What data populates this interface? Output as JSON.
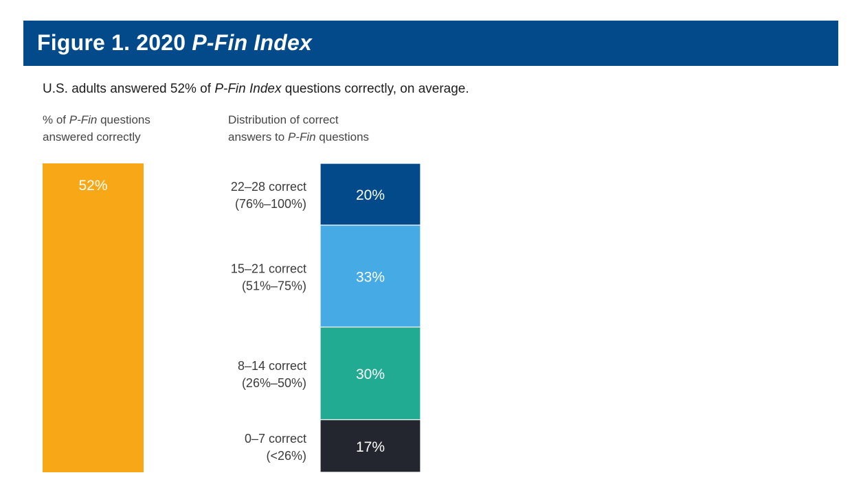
{
  "header": {
    "prefix": "Figure 1. 2020 ",
    "title_em": "P-Fin Index"
  },
  "subtitle": {
    "before": "U.S. adults answered 52% of ",
    "em": "P-Fin Index",
    "after": " questions correctly, on average."
  },
  "left_column": {
    "line1_prefix": "% of ",
    "line1_em": "P-Fin",
    "line1_suffix": " questions",
    "line2": "answered correctly"
  },
  "right_column": {
    "line1": "Distribution of correct",
    "line2_prefix": "answers to ",
    "line2_em": "P-Fin",
    "line2_suffix": " questions"
  },
  "chart_data": [
    {
      "type": "bar",
      "categories": [
        "% of P-Fin questions answered correctly"
      ],
      "values": [
        52
      ],
      "data_labels": [
        "52%"
      ],
      "color": "#f8a716"
    },
    {
      "type": "bar",
      "stacked": true,
      "categories": [
        "22–28 correct (76%–100%)",
        "15–21 correct (51%–75%)",
        "8–14 correct (26%–50%)",
        "0–7 correct (<26%)"
      ],
      "series": [
        {
          "label_line1": "22–28 correct",
          "label_line2": "(76%–100%)",
          "value": 20,
          "data_label": "20%",
          "color": "#024a8a"
        },
        {
          "label_line1": "15–21 correct",
          "label_line2": "(51%–75%)",
          "value": 33,
          "data_label": "33%",
          "color": "#46abe4"
        },
        {
          "label_line1": "8–14 correct",
          "label_line2": "(26%–50%)",
          "value": 30,
          "data_label": "30%",
          "color": "#21ab92"
        },
        {
          "label_line1": "0–7 correct",
          "label_line2": "(<26%)",
          "value": 17,
          "data_label": "17%",
          "color": "#23262e"
        }
      ]
    }
  ]
}
